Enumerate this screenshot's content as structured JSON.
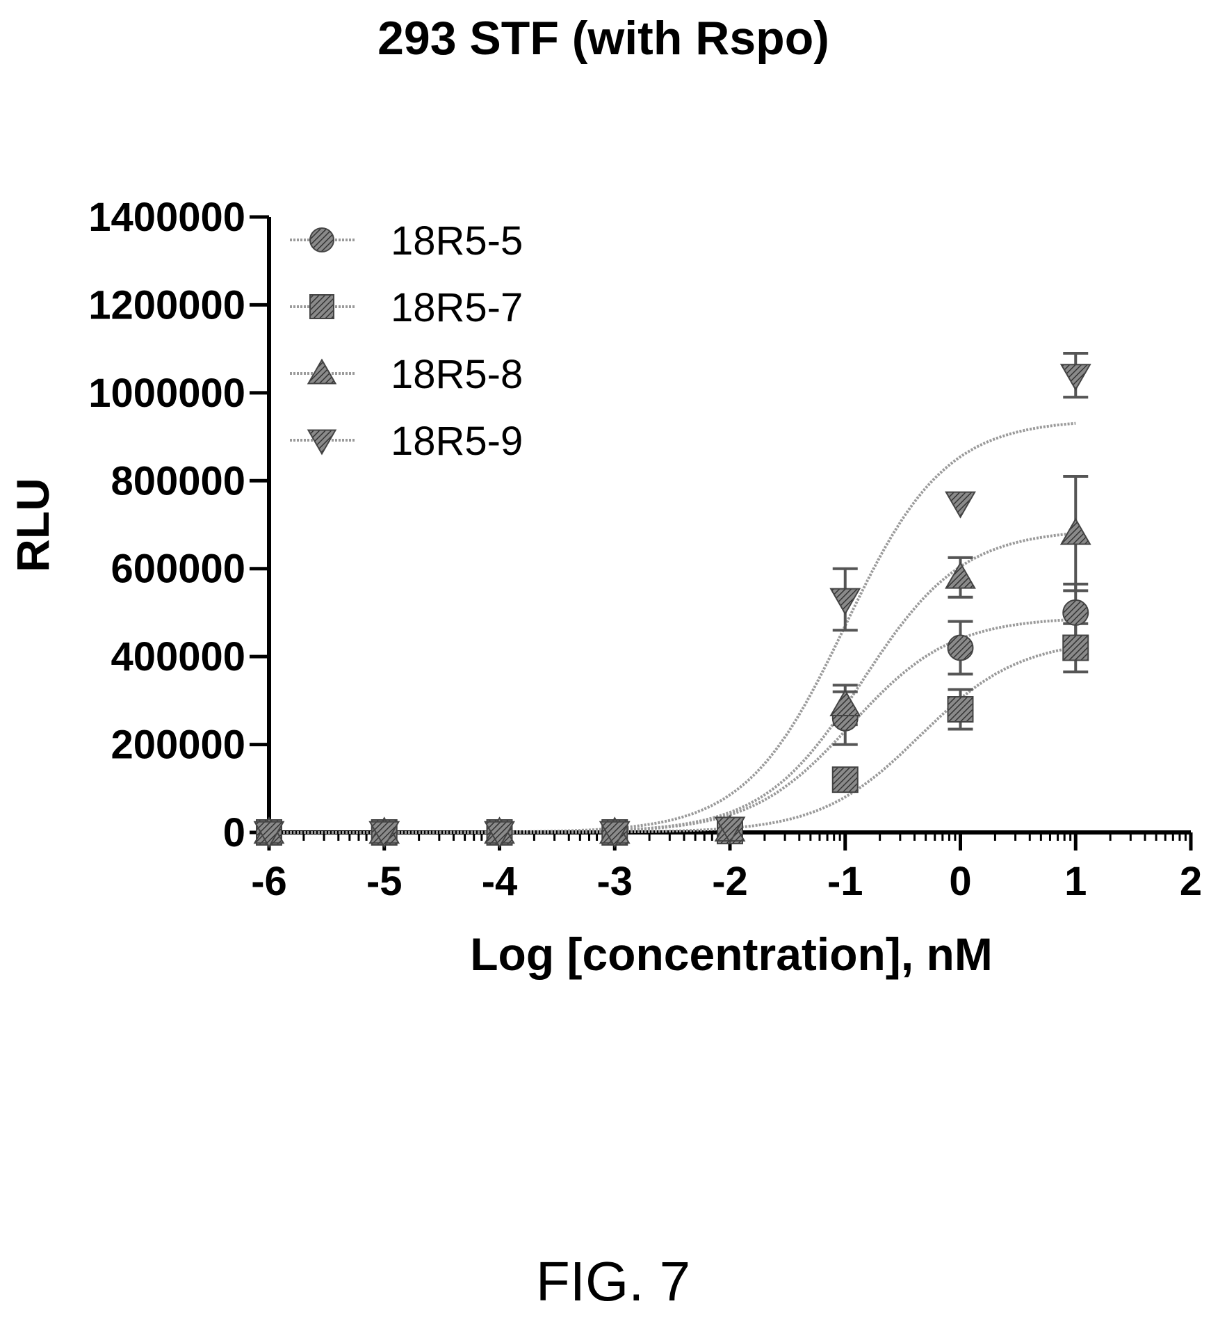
{
  "chart_data": {
    "type": "scatter",
    "title": "293 STF (with Rspo)",
    "xlabel": "Log [concentration], nM",
    "ylabel": "RLU",
    "xlim": [
      -6,
      2
    ],
    "ylim": [
      0,
      1400000
    ],
    "xticks": [
      "-6",
      "-5",
      "-4",
      "-3",
      "-2",
      "-1",
      "0",
      "1",
      "2"
    ],
    "yticks": [
      "0",
      "200000",
      "400000",
      "600000",
      "800000",
      "1000000",
      "1200000",
      "1400000"
    ],
    "xtick_values": [
      -6,
      -5,
      -4,
      -3,
      -2,
      -1,
      0,
      1,
      2
    ],
    "ytick_values": [
      0,
      200000,
      400000,
      600000,
      800000,
      1000000,
      1200000,
      1400000
    ],
    "grid": false,
    "legend_position": "top-left",
    "x": [
      -6,
      -5,
      -4,
      -3,
      -2,
      -1,
      0,
      1
    ],
    "series": [
      {
        "name": "18R5-5",
        "marker": "circle",
        "values": [
          0,
          0,
          0,
          0,
          5000,
          260000,
          420000,
          500000
        ],
        "errors": [
          0,
          0,
          0,
          0,
          0,
          60000,
          60000,
          65000
        ],
        "fit": {
          "bottom": 0,
          "top": 490000,
          "log_ec50": -0.95,
          "hill": 1.0
        }
      },
      {
        "name": "18R5-7",
        "marker": "square",
        "values": [
          0,
          0,
          0,
          0,
          3000,
          120000,
          280000,
          420000
        ],
        "errors": [
          0,
          0,
          0,
          0,
          0,
          20000,
          45000,
          55000
        ],
        "fit": {
          "bottom": 0,
          "top": 440000,
          "log_ec50": -0.35,
          "hill": 1.0
        }
      },
      {
        "name": "18R5-8",
        "marker": "triangle-up",
        "values": [
          0,
          0,
          0,
          0,
          5000,
          290000,
          580000,
          680000
        ],
        "errors": [
          0,
          0,
          0,
          0,
          0,
          45000,
          45000,
          130000
        ],
        "fit": {
          "bottom": 0,
          "top": 690000,
          "log_ec50": -0.85,
          "hill": 1.0
        }
      },
      {
        "name": "18R5-9",
        "marker": "triangle-down",
        "values": [
          0,
          0,
          0,
          0,
          10000,
          530000,
          750000,
          1040000
        ],
        "errors": [
          0,
          0,
          0,
          0,
          0,
          70000,
          0,
          50000
        ],
        "fit": {
          "bottom": 0,
          "top": 940000,
          "log_ec50": -1.0,
          "hill": 1.0
        }
      }
    ]
  },
  "figure_label": "FIG. 7"
}
